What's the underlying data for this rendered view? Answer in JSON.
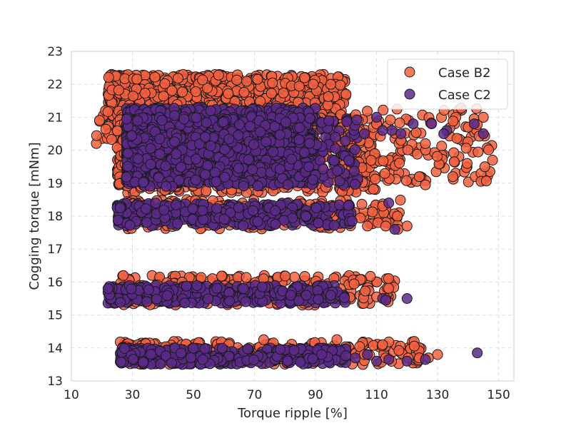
{
  "chart_data": {
    "type": "scatter",
    "xlabel": "Torque ripple [%]",
    "ylabel": "Cogging torque [mNm]",
    "xlim": [
      10,
      155
    ],
    "ylim": [
      13,
      23
    ],
    "xticks": [
      10,
      30,
      50,
      70,
      90,
      110,
      130,
      150
    ],
    "yticks": [
      13,
      14,
      15,
      16,
      17,
      18,
      19,
      20,
      21,
      22,
      23
    ],
    "grid": true,
    "legend_position": "top-right",
    "series": [
      {
        "name": "Case B2",
        "color": "#f4603e",
        "clusters": [
          {
            "x_range": [
              22,
              100
            ],
            "y_range": [
              20.6,
              22.3
            ],
            "count": 900
          },
          {
            "x_range": [
              18,
              30
            ],
            "y_range": [
              20.2,
              21.2
            ],
            "count": 30
          },
          {
            "x_range": [
              25,
              110
            ],
            "y_range": [
              18.7,
              21.0
            ],
            "count": 700
          },
          {
            "x_range": [
              100,
              148
            ],
            "y_range": [
              19.0,
              21.3
            ],
            "count": 160
          },
          {
            "x_range": [
              28,
              118
            ],
            "y_range": [
              17.6,
              18.5
            ],
            "count": 260
          },
          {
            "x_range": [
              26,
              116
            ],
            "y_range": [
              15.3,
              16.2
            ],
            "count": 260
          },
          {
            "x_range": [
              26,
              125
            ],
            "y_range": [
              13.5,
              14.2
            ],
            "count": 260
          }
        ],
        "points": [
          [
            96,
            20.1
          ],
          [
            104,
            20.9
          ],
          [
            110,
            20.8
          ],
          [
            118,
            20.3
          ],
          [
            126,
            20.2
          ],
          [
            113,
            17.7
          ],
          [
            120,
            17.7
          ],
          [
            126,
            18.95
          ],
          [
            124,
            19.2
          ],
          [
            135,
            19.2
          ],
          [
            148,
            19.7
          ],
          [
            145,
            21.0
          ],
          [
            140,
            20.7
          ],
          [
            107,
            17.7
          ],
          [
            117,
            17.6
          ],
          [
            113,
            15.5
          ],
          [
            110,
            15.55
          ],
          [
            73,
            16.1
          ],
          [
            27,
            16.2
          ],
          [
            73,
            14.25
          ],
          [
            97,
            14.25
          ],
          [
            106,
            13.8
          ],
          [
            113,
            13.7
          ],
          [
            124,
            13.7
          ],
          [
            127,
            13.7
          ],
          [
            130,
            13.8
          ],
          [
            96,
            13.85
          ],
          [
            80,
            21.05
          ],
          [
            100,
            21.7
          ],
          [
            95,
            22.0
          ]
        ]
      },
      {
        "name": "Case C2",
        "color": "#5b2a8a",
        "clusters": [
          {
            "x_range": [
              28,
              90
            ],
            "y_range": [
              19.0,
              21.3
            ],
            "count": 1400
          },
          {
            "x_range": [
              28,
              104
            ],
            "y_range": [
              18.9,
              21.0
            ],
            "count": 450
          },
          {
            "x_range": [
              25,
              102
            ],
            "y_range": [
              17.7,
              18.4
            ],
            "count": 300
          },
          {
            "x_range": [
              22,
              100
            ],
            "y_range": [
              15.35,
              15.9
            ],
            "count": 300
          },
          {
            "x_range": [
              26,
              100
            ],
            "y_range": [
              13.5,
              14.0
            ],
            "count": 330
          }
        ],
        "points": [
          [
            26,
            18.3
          ],
          [
            26,
            18.25
          ],
          [
            22,
            15.8
          ],
          [
            106,
            20.5
          ],
          [
            115,
            20.6
          ],
          [
            122,
            20.8
          ],
          [
            128,
            20.8
          ],
          [
            133,
            20.6
          ],
          [
            142,
            20.8
          ],
          [
            145,
            20.5
          ],
          [
            132,
            20.5
          ],
          [
            110,
            21.0
          ],
          [
            114,
            18.4
          ],
          [
            116,
            17.6
          ],
          [
            120,
            15.5
          ],
          [
            112,
            15.5
          ],
          [
            113,
            15.45
          ],
          [
            102,
            17.85
          ],
          [
            110,
            13.6
          ],
          [
            114,
            13.65
          ],
          [
            120,
            13.6
          ],
          [
            126,
            13.65
          ],
          [
            143,
            13.85
          ],
          [
            107,
            13.8
          ],
          [
            103,
            13.7
          ],
          [
            92,
            13.8
          ],
          [
            87,
            15.6
          ],
          [
            95,
            15.6
          ],
          [
            112,
            20.6
          ],
          [
            118,
            20.5
          ]
        ]
      }
    ]
  }
}
